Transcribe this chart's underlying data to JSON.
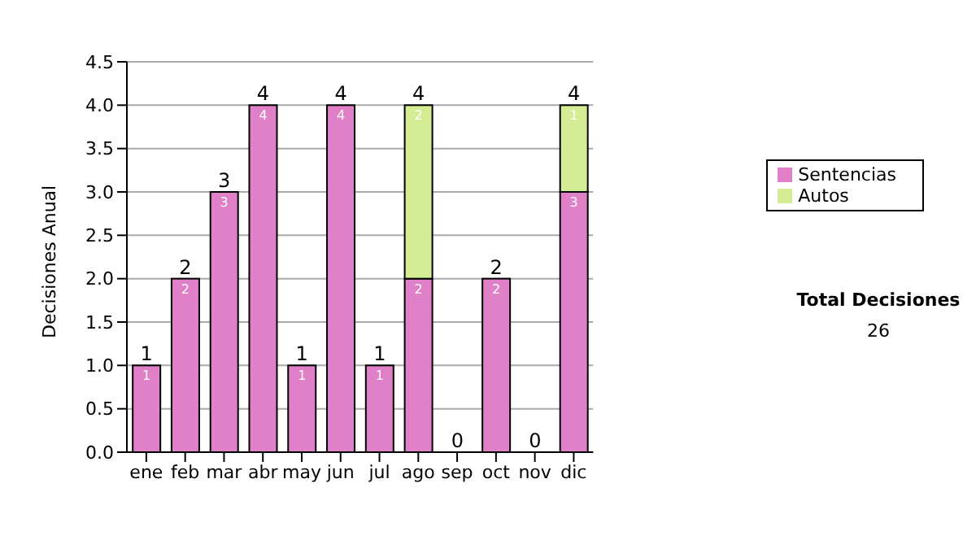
{
  "chart_data": {
    "type": "bar",
    "stacked": true,
    "ylabel": "Decisiones Anual",
    "categories": [
      "ene",
      "feb",
      "mar",
      "abr",
      "may",
      "jun",
      "jul",
      "ago",
      "sep",
      "oct",
      "nov",
      "dic"
    ],
    "series": [
      {
        "name": "Sentencias",
        "color": "#e080c8",
        "values": [
          1,
          2,
          3,
          4,
          1,
          4,
          1,
          2,
          0,
          2,
          0,
          3
        ],
        "value_labels": [
          "1",
          "2",
          "3",
          "4",
          "1",
          "4",
          "1",
          "2",
          null,
          "2",
          null,
          "3"
        ]
      },
      {
        "name": "Autos",
        "color": "#d4ec94",
        "values": [
          0,
          0,
          0,
          0,
          0,
          0,
          0,
          2,
          0,
          0,
          0,
          1
        ],
        "value_labels": [
          null,
          null,
          null,
          null,
          null,
          null,
          null,
          "2",
          null,
          null,
          null,
          "1"
        ]
      }
    ],
    "totals": [
      "1",
      "2",
      "3",
      "4",
      "1",
      "4",
      "1",
      "4",
      "0",
      "2",
      "0",
      "4"
    ],
    "ylim": [
      0,
      4.5
    ],
    "yticks": [
      {
        "value": 0,
        "label": "0.0"
      },
      {
        "value": 0.5,
        "label": "0.5"
      },
      {
        "value": 1,
        "label": "1.0"
      },
      {
        "value": 1.5,
        "label": "1.5"
      },
      {
        "value": 2,
        "label": "2.0"
      },
      {
        "value": 2.5,
        "label": "2.5"
      },
      {
        "value": 3,
        "label": "3.0"
      },
      {
        "value": 3.5,
        "label": "3.5"
      },
      {
        "value": 4,
        "label": "4.0"
      },
      {
        "value": 4.5,
        "label": "4.5"
      }
    ],
    "grid": "y",
    "legend": "right",
    "annotations": [
      "Total Decisiones",
      "26"
    ]
  }
}
